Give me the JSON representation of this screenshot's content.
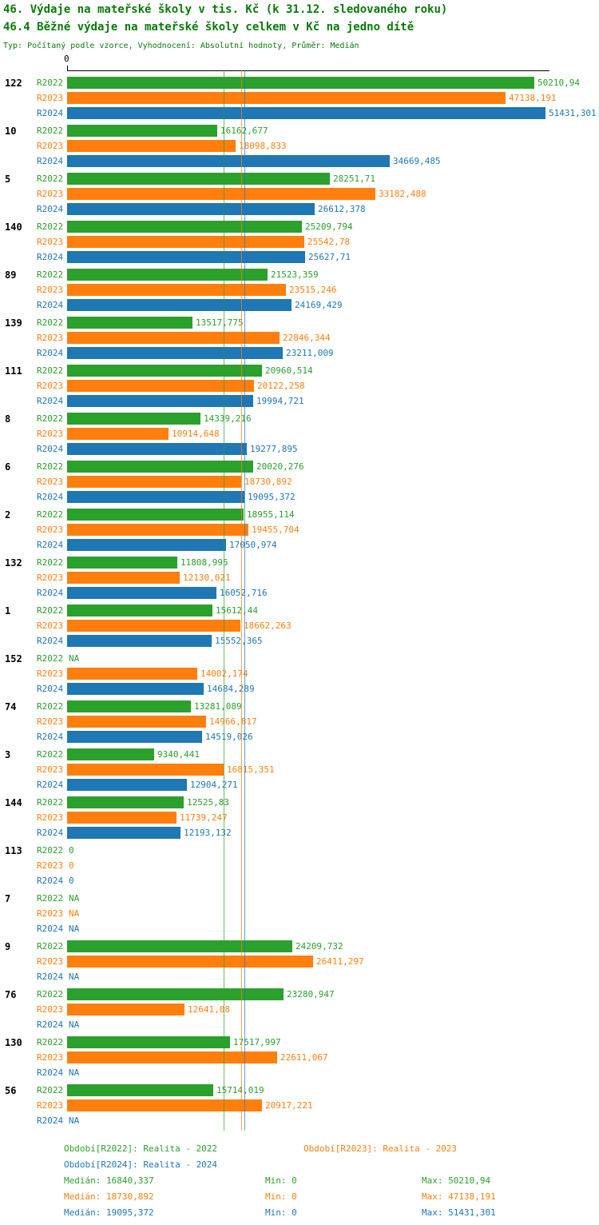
{
  "colors": {
    "title_text": "#0a7a0a",
    "axis": "#000000"
  },
  "chart_data": {
    "type": "bar",
    "orientation": "horizontal",
    "title": "46. Výdaje na mateřské školy v tis. Kč (k 31.12. sledovaného roku)",
    "subtitle": "46.4 Běžné výdaje na mateřské školy celkem v Kč na jedno dítě",
    "meta": "Typ: Počítaný podle vzorce, Vyhodnocení: Absolutní hodnoty, Průměr: Medián",
    "x_axis_zero_label": "0",
    "xlim": [
      0,
      51431.301
    ],
    "grid": false,
    "legend_position": "bottom",
    "series": [
      "R2022",
      "R2023",
      "R2024"
    ],
    "series_colors": [
      "#2ca02c",
      "#ff7f0e",
      "#1f77b4"
    ],
    "median_lines": [
      {
        "series": "R2022",
        "value": 16840.337
      },
      {
        "series": "R2023",
        "value": 18730.892
      },
      {
        "series": "R2024",
        "value": 19095.372
      }
    ],
    "groups": [
      {
        "label": "122",
        "bars": [
          {
            "value": 50210.94,
            "text": "50210,94"
          },
          {
            "value": 47138.191,
            "text": "47138,191"
          },
          {
            "value": 51431.301,
            "text": "51431,301"
          }
        ]
      },
      {
        "label": "10",
        "bars": [
          {
            "value": 16162.677,
            "text": "16162,677"
          },
          {
            "value": 18098.833,
            "text": "18098,833"
          },
          {
            "value": 34669.485,
            "text": "34669,485"
          }
        ]
      },
      {
        "label": "5",
        "bars": [
          {
            "value": 28251.71,
            "text": "28251,71"
          },
          {
            "value": 33182.488,
            "text": "33182,488"
          },
          {
            "value": 26612.378,
            "text": "26612,378"
          }
        ]
      },
      {
        "label": "140",
        "bars": [
          {
            "value": 25209.794,
            "text": "25209,794"
          },
          {
            "value": 25542.78,
            "text": "25542,78"
          },
          {
            "value": 25627.71,
            "text": "25627,71"
          }
        ]
      },
      {
        "label": "89",
        "bars": [
          {
            "value": 21523.359,
            "text": "21523,359"
          },
          {
            "value": 23515.246,
            "text": "23515,246"
          },
          {
            "value": 24169.429,
            "text": "24169,429"
          }
        ]
      },
      {
        "label": "139",
        "bars": [
          {
            "value": 13517.775,
            "text": "13517,775"
          },
          {
            "value": 22846.344,
            "text": "22846,344"
          },
          {
            "value": 23211.009,
            "text": "23211,009"
          }
        ]
      },
      {
        "label": "111",
        "bars": [
          {
            "value": 20960.514,
            "text": "20960,514"
          },
          {
            "value": 20122.258,
            "text": "20122,258"
          },
          {
            "value": 19994.721,
            "text": "19994,721"
          }
        ]
      },
      {
        "label": "8",
        "bars": [
          {
            "value": 14339.216,
            "text": "14339,216"
          },
          {
            "value": 10914.648,
            "text": "10914,648"
          },
          {
            "value": 19277.895,
            "text": "19277,895"
          }
        ]
      },
      {
        "label": "6",
        "bars": [
          {
            "value": 20020.276,
            "text": "20020,276"
          },
          {
            "value": 18730.892,
            "text": "18730,892"
          },
          {
            "value": 19095.372,
            "text": "19095,372"
          }
        ]
      },
      {
        "label": "2",
        "bars": [
          {
            "value": 18955.114,
            "text": "18955,114"
          },
          {
            "value": 19455.704,
            "text": "19455,704"
          },
          {
            "value": 17050.974,
            "text": "17050,974"
          }
        ]
      },
      {
        "label": "132",
        "bars": [
          {
            "value": 11808.995,
            "text": "11808,995"
          },
          {
            "value": 12130.021,
            "text": "12130,021"
          },
          {
            "value": 16052.716,
            "text": "16052,716"
          }
        ]
      },
      {
        "label": "1",
        "bars": [
          {
            "value": 15612.44,
            "text": "15612,44"
          },
          {
            "value": 18662.263,
            "text": "18662,263"
          },
          {
            "value": 15552.365,
            "text": "15552,365"
          }
        ]
      },
      {
        "label": "152",
        "bars": [
          {
            "value": null,
            "text": "NA"
          },
          {
            "value": 14002.174,
            "text": "14002,174"
          },
          {
            "value": 14684.289,
            "text": "14684,289"
          }
        ]
      },
      {
        "label": "74",
        "bars": [
          {
            "value": 13281.089,
            "text": "13281,089"
          },
          {
            "value": 14966.817,
            "text": "14966,817"
          },
          {
            "value": 14519.026,
            "text": "14519,026"
          }
        ]
      },
      {
        "label": "3",
        "bars": [
          {
            "value": 9340.441,
            "text": "9340,441"
          },
          {
            "value": 16815.351,
            "text": "16815,351"
          },
          {
            "value": 12904.271,
            "text": "12904,271"
          }
        ]
      },
      {
        "label": "144",
        "bars": [
          {
            "value": 12525.83,
            "text": "12525,83"
          },
          {
            "value": 11739.247,
            "text": "11739,247"
          },
          {
            "value": 12193.132,
            "text": "12193,132"
          }
        ]
      },
      {
        "label": "113",
        "bars": [
          {
            "value": 0,
            "text": "0"
          },
          {
            "value": 0,
            "text": "0"
          },
          {
            "value": 0,
            "text": "0"
          }
        ]
      },
      {
        "label": "7",
        "bars": [
          {
            "value": null,
            "text": "NA"
          },
          {
            "value": null,
            "text": "NA"
          },
          {
            "value": null,
            "text": "NA"
          }
        ]
      },
      {
        "label": "9",
        "bars": [
          {
            "value": 24209.732,
            "text": "24209,732"
          },
          {
            "value": 26411.297,
            "text": "26411,297"
          },
          {
            "value": null,
            "text": "NA"
          }
        ]
      },
      {
        "label": "76",
        "bars": [
          {
            "value": 23280.947,
            "text": "23280,947"
          },
          {
            "value": 12641.08,
            "text": "12641,08"
          },
          {
            "value": null,
            "text": "NA"
          }
        ]
      },
      {
        "label": "130",
        "bars": [
          {
            "value": 17517.997,
            "text": "17517,997"
          },
          {
            "value": 22611.067,
            "text": "22611,067"
          },
          {
            "value": null,
            "text": "NA"
          }
        ]
      },
      {
        "label": "56",
        "bars": [
          {
            "value": 15714.019,
            "text": "15714,019"
          },
          {
            "value": 20917.221,
            "text": "20917,221"
          },
          {
            "value": null,
            "text": "NA"
          }
        ]
      }
    ]
  },
  "footer": {
    "periods": [
      "Období[R2022]: Realita - 2022",
      "Období[R2023]: Realita - 2023",
      "Období[R2024]: Realita - 2024"
    ],
    "stats": [
      {
        "median": "Medián: 16840,337",
        "min": "Min: 0",
        "max": "Max: 50210,94"
      },
      {
        "median": "Medián: 18730,892",
        "min": "Min: 0",
        "max": "Max: 47138,191"
      },
      {
        "median": "Medián: 19095,372",
        "min": "Min: 0",
        "max": "Max: 51431,301"
      }
    ]
  }
}
